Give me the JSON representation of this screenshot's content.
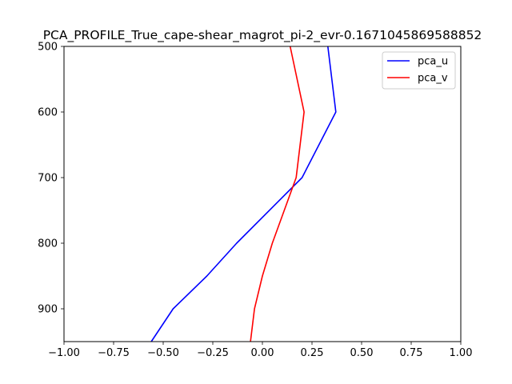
{
  "chart_data": {
    "type": "line",
    "title": "PCA_PROFILE_True_cape-shear_magrot_pi-2_evr-0.1671045869588852",
    "xlabel": "",
    "ylabel": "",
    "xlim": [
      -1.0,
      1.0
    ],
    "ylim": [
      950,
      500
    ],
    "y_inverted": true,
    "grid": false,
    "legend_position": "upper right",
    "x_ticks": [
      "−1.00",
      "−0.75",
      "−0.50",
      "−0.25",
      "0.00",
      "0.25",
      "0.50",
      "0.75",
      "1.00"
    ],
    "x_tick_values": [
      -1.0,
      -0.75,
      -0.5,
      -0.25,
      0.0,
      0.25,
      0.5,
      0.75,
      1.0
    ],
    "y_ticks": [
      "500",
      "600",
      "700",
      "800",
      "900"
    ],
    "y_tick_values": [
      500,
      600,
      700,
      800,
      900
    ],
    "series": [
      {
        "name": "pca_u",
        "color": "#0000ff",
        "points": [
          [
            -0.56,
            950
          ],
          [
            -0.45,
            900
          ],
          [
            -0.28,
            850
          ],
          [
            -0.13,
            800
          ],
          [
            0.2,
            700
          ],
          [
            0.37,
            600
          ],
          [
            0.33,
            500
          ]
        ]
      },
      {
        "name": "pca_v",
        "color": "#ff0000",
        "points": [
          [
            -0.06,
            950
          ],
          [
            -0.04,
            900
          ],
          [
            0.0,
            850
          ],
          [
            0.05,
            800
          ],
          [
            0.17,
            700
          ],
          [
            0.21,
            600
          ],
          [
            0.14,
            500
          ]
        ]
      }
    ]
  }
}
